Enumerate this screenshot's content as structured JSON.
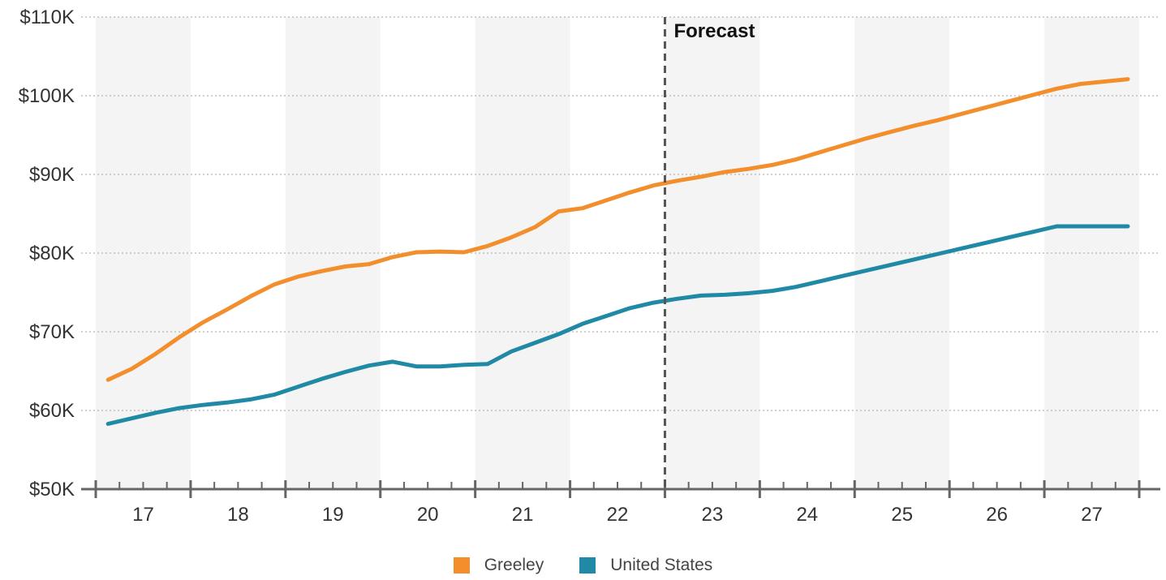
{
  "chart_data": {
    "type": "line",
    "x_ticks": [
      "17",
      "18",
      "19",
      "20",
      "21",
      "22",
      "23",
      "24",
      "25",
      "26",
      "27"
    ],
    "y_ticks": [
      "$50K",
      "$60K",
      "$70K",
      "$80K",
      "$90K",
      "$100K",
      "$110K"
    ],
    "ylim": [
      50000,
      110000
    ],
    "xlim": [
      2016.5,
      2027.5
    ],
    "grid": "horizontal dotted",
    "forecast_label": "Forecast",
    "forecast_start": 2022.5,
    "legend_position": "bottom-center",
    "series": [
      {
        "name": "Greeley",
        "color": "#f28e2b",
        "points": [
          [
            2016.63,
            63900
          ],
          [
            2016.88,
            65300
          ],
          [
            2017.13,
            67200
          ],
          [
            2017.38,
            69300
          ],
          [
            2017.63,
            71200
          ],
          [
            2017.88,
            72800
          ],
          [
            2018.13,
            74500
          ],
          [
            2018.38,
            76000
          ],
          [
            2018.63,
            77000
          ],
          [
            2018.88,
            77700
          ],
          [
            2019.13,
            78300
          ],
          [
            2019.38,
            78600
          ],
          [
            2019.63,
            79500
          ],
          [
            2019.88,
            80100
          ],
          [
            2020.13,
            80200
          ],
          [
            2020.38,
            80100
          ],
          [
            2020.63,
            80900
          ],
          [
            2020.88,
            82000
          ],
          [
            2021.13,
            83300
          ],
          [
            2021.38,
            85300
          ],
          [
            2021.63,
            85700
          ],
          [
            2021.88,
            86700
          ],
          [
            2022.13,
            87700
          ],
          [
            2022.38,
            88600
          ],
          [
            2022.63,
            89200
          ],
          [
            2022.88,
            89700
          ],
          [
            2023.13,
            90300
          ],
          [
            2023.38,
            90700
          ],
          [
            2023.63,
            91200
          ],
          [
            2023.88,
            91900
          ],
          [
            2024.13,
            92800
          ],
          [
            2024.38,
            93700
          ],
          [
            2024.63,
            94600
          ],
          [
            2024.88,
            95400
          ],
          [
            2025.13,
            96200
          ],
          [
            2025.38,
            96900
          ],
          [
            2025.63,
            97700
          ],
          [
            2025.88,
            98500
          ],
          [
            2026.13,
            99300
          ],
          [
            2026.38,
            100100
          ],
          [
            2026.63,
            100900
          ],
          [
            2026.88,
            101500
          ],
          [
            2027.38,
            102100
          ]
        ]
      },
      {
        "name": "United States",
        "color": "#1f89a6",
        "points": [
          [
            2016.63,
            58300
          ],
          [
            2016.88,
            59000
          ],
          [
            2017.13,
            59700
          ],
          [
            2017.38,
            60300
          ],
          [
            2017.63,
            60700
          ],
          [
            2017.88,
            61000
          ],
          [
            2018.13,
            61400
          ],
          [
            2018.38,
            62000
          ],
          [
            2018.63,
            63000
          ],
          [
            2018.88,
            64000
          ],
          [
            2019.13,
            64900
          ],
          [
            2019.38,
            65700
          ],
          [
            2019.63,
            66200
          ],
          [
            2019.88,
            65600
          ],
          [
            2020.13,
            65600
          ],
          [
            2020.38,
            65800
          ],
          [
            2020.63,
            65900
          ],
          [
            2020.88,
            67500
          ],
          [
            2021.13,
            68600
          ],
          [
            2021.38,
            69700
          ],
          [
            2021.63,
            71000
          ],
          [
            2021.88,
            72000
          ],
          [
            2022.13,
            73000
          ],
          [
            2022.38,
            73700
          ],
          [
            2022.63,
            74200
          ],
          [
            2022.88,
            74600
          ],
          [
            2023.13,
            74700
          ],
          [
            2023.38,
            74900
          ],
          [
            2023.63,
            75200
          ],
          [
            2023.88,
            75700
          ],
          [
            2024.13,
            76400
          ],
          [
            2024.38,
            77100
          ],
          [
            2024.63,
            77800
          ],
          [
            2024.88,
            78500
          ],
          [
            2025.13,
            79200
          ],
          [
            2025.38,
            79900
          ],
          [
            2025.63,
            80600
          ],
          [
            2025.88,
            81300
          ],
          [
            2026.13,
            82000
          ],
          [
            2026.38,
            82700
          ],
          [
            2026.63,
            83400
          ],
          [
            2027.38,
            83400
          ]
        ]
      }
    ]
  }
}
